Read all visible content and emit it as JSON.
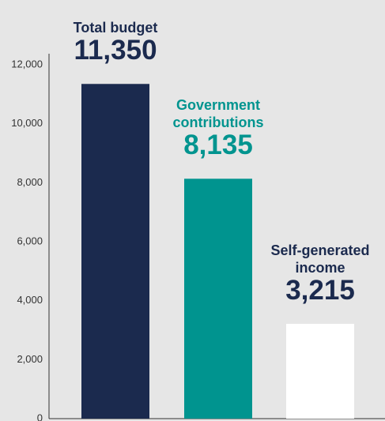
{
  "chart_data": {
    "type": "bar",
    "categories": [
      "Total budget",
      "Government contributions",
      "Self-generated income"
    ],
    "values": [
      11350,
      8135,
      3215
    ],
    "value_labels": [
      "11,350",
      "8,135",
      "3,215"
    ],
    "colors": [
      "#1b2a4e",
      "#00948f",
      "#ffffff"
    ],
    "label_colors": [
      "#1b2a4e",
      "#00948f",
      "#1b2a4e"
    ],
    "ylim": [
      0,
      12000
    ],
    "yticks": [
      0,
      {
        "value": 2000,
        "label": "2,000"
      },
      {
        "value": 4000,
        "label": "4,000"
      },
      {
        "value": 6000,
        "label": "6,000"
      },
      {
        "value": 8000,
        "label": "8,000"
      },
      {
        "value": 10000,
        "label": "10,000"
      },
      {
        "value": 12000,
        "label": "12,000"
      }
    ]
  }
}
